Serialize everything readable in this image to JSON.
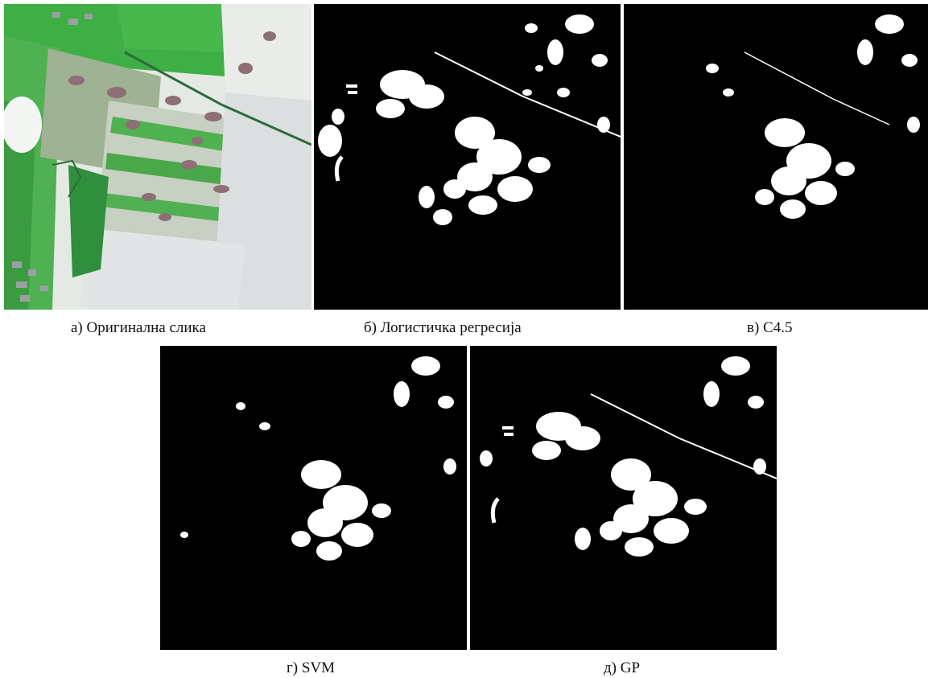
{
  "figure": {
    "panels": [
      {
        "caption": "а) Оригинална слика"
      },
      {
        "caption": "б) Логистичка регресија"
      },
      {
        "caption": "в) C4.5"
      },
      {
        "caption": "г) SVM"
      },
      {
        "caption": "д) GP"
      }
    ],
    "colors": {
      "mask_foreground": "#ffffff",
      "mask_background": "#000000",
      "field_green": "#3fae45",
      "field_pale": "#d9ddd8",
      "field_mauve": "#8d6f75"
    }
  }
}
